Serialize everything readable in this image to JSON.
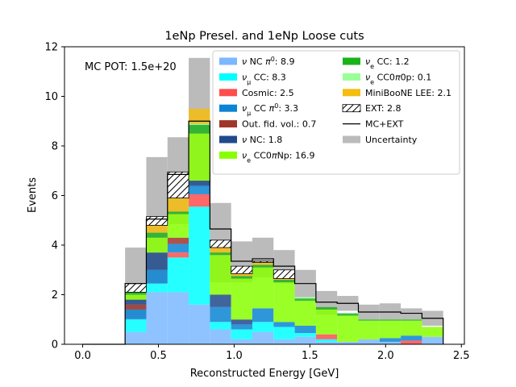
{
  "chart_data": {
    "type": "bar",
    "stacked": true,
    "title": "1eNp Presel. and 1eNp Loose cuts",
    "xlabel": "Reconstructed Energy [GeV]",
    "ylabel": "Events",
    "annotation": "MC POT: 1.5e+20",
    "xlim": [
      -0.12,
      2.52
    ],
    "ylim": [
      0,
      12
    ],
    "xticks": [
      0.0,
      0.5,
      1.0,
      1.5,
      2.0,
      2.5
    ],
    "xtick_labels": [
      "0.0",
      "0.5",
      "1.0",
      "1.5",
      "2.0",
      "2.5"
    ],
    "yticks": [
      0,
      2,
      4,
      6,
      8,
      10,
      12
    ],
    "ytick_labels": [
      "0",
      "2",
      "4",
      "6",
      "8",
      "10",
      "12"
    ],
    "bin_edges": [
      0.0,
      0.14,
      0.28,
      0.42,
      0.56,
      0.7,
      0.84,
      0.98,
      1.12,
      1.26,
      1.4,
      1.54,
      1.68,
      1.82,
      1.96,
      2.1,
      2.24,
      2.38
    ],
    "series": [
      {
        "legend": "$\\nu$ NC $\\pi^0$: 8.9",
        "color": "#7ab8ff",
        "values": [
          0,
          0,
          0.5,
          2.1,
          2.1,
          1.6,
          0.6,
          0.2,
          0.5,
          0.2,
          0.3,
          0.1,
          0.1,
          0.2,
          0.1,
          0,
          0.3
        ]
      },
      {
        "legend": "$\\nu_\\mu$ CC: 8.3",
        "color": "#00ffff",
        "values": [
          0,
          0,
          0.5,
          0.35,
          1.4,
          3.95,
          0.3,
          0.4,
          0.4,
          0.5,
          0.15,
          0.1,
          0,
          0,
          0,
          0,
          0
        ]
      },
      {
        "legend": "Cosmic: 2.5",
        "color": "#ff4d4d",
        "values": [
          0,
          0,
          0,
          0,
          0.2,
          0.5,
          0,
          0,
          0,
          0,
          0,
          0.2,
          0,
          0,
          0,
          0.15,
          0
        ]
      },
      {
        "legend": "$\\nu_\\mu$ CC $\\pi^0$: 3.3",
        "color": "#0b84d4",
        "values": [
          0,
          0,
          0.4,
          0.55,
          0.35,
          0.35,
          0.6,
          0.2,
          0.55,
          0.2,
          0.3,
          0,
          0,
          0,
          0.15,
          0.2,
          0
        ]
      },
      {
        "legend": "Out. fid. vol.: 0.7",
        "color": "#a0352a",
        "values": [
          0,
          0,
          0.2,
          0,
          0.25,
          0,
          0,
          0,
          0,
          0,
          0,
          0,
          0,
          0,
          0,
          0,
          0
        ]
      },
      {
        "legend": "$\\nu$ NC: 1.8",
        "color": "#1f4a8c",
        "values": [
          0,
          0,
          0.2,
          0.7,
          0,
          0.2,
          0.5,
          0.2,
          0,
          0,
          0,
          0,
          0,
          0,
          0,
          0,
          0
        ]
      },
      {
        "legend": "$\\nu_e$ CC0$\\pi$Np: 16.9",
        "color": "#88ff00",
        "values": [
          0,
          0,
          0.2,
          0.6,
          0.95,
          1.9,
          1.6,
          1.65,
          1.65,
          1.6,
          1.0,
          1.0,
          1.05,
          0.75,
          0.7,
          0.6,
          0.4
        ]
      },
      {
        "legend": "$\\nu_e$ CC: 1.2",
        "color": "#1bb31b",
        "values": [
          0,
          0,
          0.1,
          0.2,
          0.1,
          0.35,
          0.1,
          0.1,
          0.1,
          0.1,
          0.1,
          0.1,
          0.1,
          0.05,
          0.05,
          0.05,
          0
        ]
      },
      {
        "legend": "$\\nu_e$ CC0$\\pi$0p: 0.1",
        "color": "#99ff99",
        "values": [
          0,
          0,
          0,
          0,
          0,
          0.05,
          0,
          0,
          0,
          0,
          0.05,
          0,
          0,
          0,
          0,
          0,
          0
        ]
      },
      {
        "legend": "MiniBooNE LEE: 2.1",
        "color": "#f5bd0f",
        "values": [
          0,
          0,
          0,
          0.3,
          0.55,
          0.6,
          0.2,
          0.1,
          0.1,
          0.05,
          0,
          0,
          0,
          0,
          0,
          0,
          0
        ]
      },
      {
        "legend": "EXT: 2.8",
        "color": "#ffffff",
        "hatch": true,
        "values": [
          0,
          0,
          0.35,
          0.35,
          1.05,
          0,
          0.3,
          0.3,
          0.05,
          0.35,
          0,
          0,
          0,
          0,
          0,
          0,
          0
        ]
      }
    ],
    "mc_plus_ext": {
      "legend": "MC+EXT",
      "color": "#000000",
      "values": [
        0,
        0,
        2.45,
        5.05,
        6.85,
        9.0,
        4.65,
        3.35,
        3.45,
        3.15,
        2.45,
        1.7,
        1.65,
        1.3,
        1.3,
        1.25,
        1.05
      ]
    },
    "uncertainty": {
      "legend": "Uncertainty",
      "color": "#bbbbbb",
      "upper": [
        0,
        0,
        3.9,
        7.55,
        8.35,
        11.55,
        5.7,
        4.15,
        4.3,
        3.8,
        3.0,
        2.15,
        1.95,
        1.6,
        1.65,
        1.45,
        1.35
      ],
      "lower": [
        0,
        0,
        1.05,
        2.45,
        4.85,
        6.35,
        2.5,
        2.5,
        2.7,
        2.45,
        1.9,
        1.2,
        1.35,
        1.0,
        1.0,
        1.0,
        0.75
      ]
    }
  }
}
